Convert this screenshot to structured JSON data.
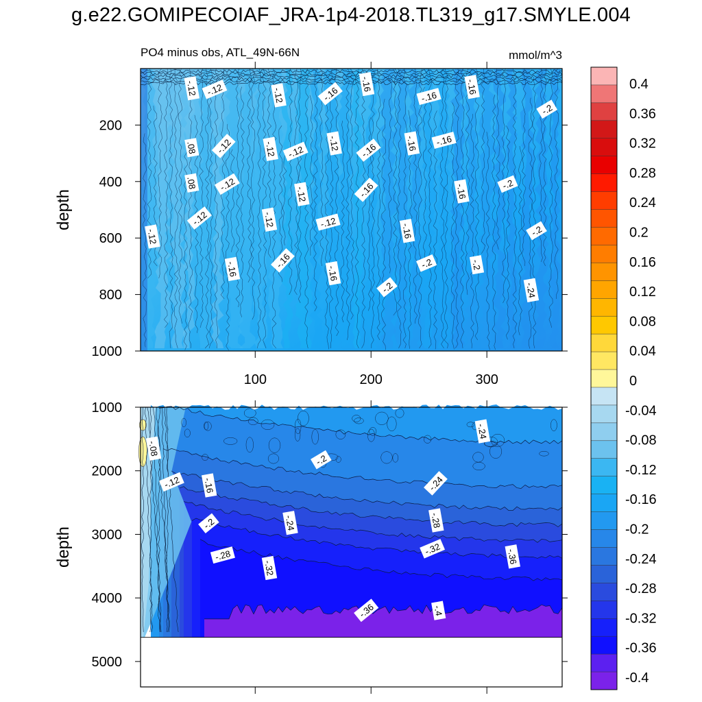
{
  "title": "g.e22.GOMIPECOIAF_JRA-1p4-2018.TL319_g17.SMYLE.004",
  "chart_data": [
    {
      "type": "heatmap",
      "panel": "upper",
      "left_label": "PO4 minus obs, ATL_49N-66N",
      "right_label": "mmol/m^3",
      "ylabel": "depth",
      "xlabel": "",
      "x_range": [
        1,
        365
      ],
      "y_range": [
        0,
        1000
      ],
      "y_reversed": true,
      "x_ticks": [
        100,
        200,
        300
      ],
      "x_tick_labels": [
        "100",
        "200",
        "300"
      ],
      "y_ticks": [
        200,
        400,
        600,
        800,
        1000
      ],
      "y_tick_labels": [
        "200",
        "400",
        "600",
        "800",
        "1000"
      ],
      "contour_labels": [
        {
          "text": "-.12",
          "x": 45,
          "y": 70
        },
        {
          "text": "-.12",
          "x": 65,
          "y": 75
        },
        {
          "text": "-.12",
          "x": 120,
          "y": 95
        },
        {
          "text": "-.16",
          "x": 165,
          "y": 90
        },
        {
          "text": "-.16",
          "x": 196,
          "y": 55
        },
        {
          "text": "-.16",
          "x": 250,
          "y": 100
        },
        {
          "text": "-.16",
          "x": 287,
          "y": 65
        },
        {
          "text": "-.2",
          "x": 352,
          "y": 145
        },
        {
          "text": ".08",
          "x": 45,
          "y": 280
        },
        {
          "text": "-.12",
          "x": 73,
          "y": 275
        },
        {
          "text": "-.12",
          "x": 113,
          "y": 285
        },
        {
          "text": "-.12",
          "x": 135,
          "y": 295
        },
        {
          "text": "-.12",
          "x": 168,
          "y": 265
        },
        {
          "text": "-.16",
          "x": 198,
          "y": 290
        },
        {
          "text": "-.16",
          "x": 235,
          "y": 265
        },
        {
          "text": "-.16",
          "x": 263,
          "y": 255
        },
        {
          "text": ".08",
          "x": 45,
          "y": 405
        },
        {
          "text": "-.12",
          "x": 76,
          "y": 410
        },
        {
          "text": "-.12",
          "x": 140,
          "y": 445
        },
        {
          "text": "-.16",
          "x": 196,
          "y": 430
        },
        {
          "text": "-.16",
          "x": 278,
          "y": 435
        },
        {
          "text": "-.2",
          "x": 318,
          "y": 410
        },
        {
          "text": "-.12",
          "x": 11,
          "y": 595
        },
        {
          "text": "-.12",
          "x": 52,
          "y": 530
        },
        {
          "text": "-.12",
          "x": 112,
          "y": 535
        },
        {
          "text": "-.12",
          "x": 163,
          "y": 545
        },
        {
          "text": "-.16",
          "x": 231,
          "y": 575
        },
        {
          "text": "-.2",
          "x": 343,
          "y": 575
        },
        {
          "text": "-.16",
          "x": 80,
          "y": 710
        },
        {
          "text": "-.16",
          "x": 124,
          "y": 680
        },
        {
          "text": "-.16",
          "x": 167,
          "y": 725
        },
        {
          "text": "-.2",
          "x": 248,
          "y": 690
        },
        {
          "text": "-.2",
          "x": 291,
          "y": 695
        },
        {
          "text": "-.2",
          "x": 214,
          "y": 775
        },
        {
          "text": "-.24",
          "x": 338,
          "y": 785
        }
      ]
    },
    {
      "type": "heatmap",
      "panel": "lower",
      "ylabel": "depth",
      "xlabel": "",
      "x_range": [
        1,
        365
      ],
      "y_range": [
        1000,
        5400
      ],
      "y_reversed": true,
      "data_bottom_depth": 4620,
      "x_ticks": [
        100,
        200,
        300
      ],
      "y_ticks": [
        1000,
        2000,
        3000,
        4000,
        5000
      ],
      "y_tick_labels": [
        "1000",
        "2000",
        "3000",
        "4000",
        "5000"
      ],
      "contour_labels": [
        {
          "text": "-.08",
          "x": 12,
          "y": 1650
        },
        {
          "text": "-.12",
          "x": 28,
          "y": 2180
        },
        {
          "text": "-.16",
          "x": 60,
          "y": 2230
        },
        {
          "text": "-.2",
          "x": 60,
          "y": 2830
        },
        {
          "text": "-.24",
          "x": 130,
          "y": 2820
        },
        {
          "text": "-.28",
          "x": 72,
          "y": 3330
        },
        {
          "text": "-.32",
          "x": 112,
          "y": 3530
        },
        {
          "text": "-.2",
          "x": 157,
          "y": 1830
        },
        {
          "text": "-.24",
          "x": 296,
          "y": 1380
        },
        {
          "text": "-.24",
          "x": 256,
          "y": 2200
        },
        {
          "text": "-.28",
          "x": 256,
          "y": 2780
        },
        {
          "text": "-.32",
          "x": 253,
          "y": 3230
        },
        {
          "text": "-.36",
          "x": 322,
          "y": 3350
        },
        {
          "text": "-.36",
          "x": 196,
          "y": 4200
        },
        {
          "text": "-.4",
          "x": 258,
          "y": 4200
        }
      ]
    }
  ],
  "colorbar": {
    "levels": [
      "0.4",
      "0.36",
      "0.32",
      "0.28",
      "0.24",
      "0.2",
      "0.16",
      "0.12",
      "0.08",
      "0.04",
      "0",
      "-0.04",
      "-0.08",
      "-0.12",
      "-0.16",
      "-0.2",
      "-0.24",
      "-0.28",
      "-0.32",
      "-0.36",
      "-0.4"
    ],
    "colors": [
      "#fbb5b5",
      "#ef7676",
      "#df4141",
      "#d21818",
      "#d90d0d",
      "#e90000",
      "#ff1a00",
      "#ff3d00",
      "#ff5500",
      "#ff6a00",
      "#ff7d00",
      "#ff9400",
      "#ffa500",
      "#ffb600",
      "#ffc800",
      "#ffd83a",
      "#ffe762",
      "#fff79a",
      "#c6e4f4",
      "#a7d8f0",
      "#8fceef",
      "#6cc2ee",
      "#3bb7f2",
      "#19b2f3",
      "#1aa6f4",
      "#2299f0",
      "#2787e9",
      "#2a77e0",
      "#2a63d9",
      "#2a4bde",
      "#2436eb",
      "#1620fb",
      "#1010ff",
      "#5c20f0",
      "#7b22e9"
    ]
  }
}
